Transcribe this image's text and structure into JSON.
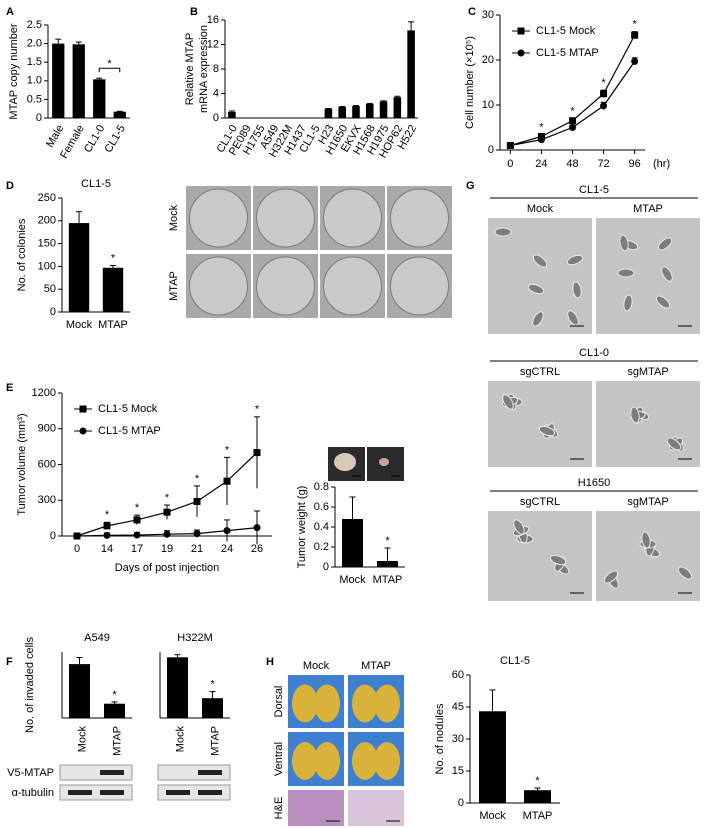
{
  "panels": [
    "A",
    "B",
    "C",
    "D",
    "E",
    "F",
    "G",
    "H"
  ],
  "chart_data": [
    {
      "type": "bar",
      "y_label": "MTAP copy number",
      "categories": [
        "Male",
        "Female",
        "CL1-0",
        "CL1-5"
      ],
      "values": [
        2.0,
        1.98,
        1.04,
        0.17
      ],
      "errors": [
        0.12,
        0.06,
        0.03,
        0.01
      ],
      "color": "#000000",
      "ylim": [
        0,
        2.5
      ],
      "yticks": [
        0,
        0.5,
        {
          "value": 1,
          "label": "1.0"
        },
        1.5,
        {
          "value": 2,
          "label": "2.0"
        },
        2.5
      ],
      "annotations": [
        {
          "text": "*",
          "from": "CL1-0",
          "to": "CL1-5"
        }
      ]
    },
    {
      "type": "bar",
      "y_label": [
        "Relative MTAP",
        "mRNA expression"
      ],
      "categories": [
        "CL1-0",
        "PE089",
        "H1755",
        "A549",
        "H322M",
        "H1437",
        "CL1-5",
        "H23",
        "H1650",
        "EKVX",
        "H1568",
        "H1975",
        "HOP62",
        "H522"
      ],
      "values": [
        1.0,
        0,
        0,
        0,
        0,
        0,
        0,
        1.5,
        1.8,
        1.95,
        2.3,
        2.7,
        3.4,
        14.3
      ],
      "errors": [
        0.15,
        0,
        0,
        0,
        0,
        0,
        0,
        0.05,
        0.08,
        0.08,
        0.08,
        0.1,
        0.15,
        1.4
      ],
      "color": "#000000",
      "ylim": [
        0,
        16
      ],
      "yticks": [
        0,
        4,
        8,
        12,
        16
      ]
    },
    {
      "type": "line",
      "y_label": "Cell number (×10⁵)",
      "x_label": "(hr)",
      "x": [
        0,
        24,
        48,
        72,
        96
      ],
      "xlim": [
        -8,
        104
      ],
      "xticks": [
        0,
        24,
        48,
        72,
        96
      ],
      "ylim": [
        0,
        30
      ],
      "yticks": [
        0,
        10,
        20,
        30
      ],
      "legend": "top-left",
      "series": [
        {
          "name": "CL1-5 Mock",
          "color": "#000000",
          "marker": "square",
          "values": [
            1,
            3,
            6.5,
            12.5,
            25.5
          ],
          "errors": [
            0.2,
            0.4,
            0.5,
            0.8,
            0.8
          ]
        },
        {
          "name": "CL1-5 MTAP",
          "color": "#000000",
          "marker": "circle",
          "values": [
            1,
            2.3,
            5,
            9.8,
            19.7
          ],
          "errors": [
            0.2,
            0.3,
            0.4,
            0.8,
            0.8
          ]
        }
      ],
      "annotations": [
        {
          "text": "*",
          "at": 24
        },
        {
          "text": "*",
          "at": 48
        },
        {
          "text": "*",
          "at": 72
        },
        {
          "text": "*",
          "at": 96
        }
      ]
    },
    {
      "type": "bar",
      "title": "CL1-5",
      "y_label": "No. of colonies",
      "categories": [
        "Mock",
        "MTAP"
      ],
      "values": [
        195,
        97
      ],
      "errors": [
        25,
        5
      ],
      "color": "#000000",
      "ylim": [
        0,
        250
      ],
      "yticks": [
        0,
        50,
        100,
        150,
        200,
        250
      ],
      "annotations": [
        {
          "text": "*",
          "at": "MTAP"
        }
      ]
    },
    {
      "type": "line",
      "y_label": "Tumor volume (mm³)",
      "x_label": "Days of post injection",
      "categories": [
        "0",
        "14",
        "17",
        "19",
        "21",
        "24",
        "26"
      ],
      "ylim": [
        0,
        1200
      ],
      "yticks": [
        0,
        300,
        600,
        900,
        1200
      ],
      "legend": "top-left",
      "series": [
        {
          "name": "CL1-5 Mock",
          "color": "#000000",
          "marker": "square",
          "values": [
            0,
            85,
            135,
            200,
            290,
            460,
            700
          ],
          "errors": [
            0,
            30,
            40,
            60,
            130,
            200,
            300
          ]
        },
        {
          "name": "CL1-5 MTAP",
          "color": "#000000",
          "marker": "circle",
          "values": [
            0,
            5,
            8,
            15,
            20,
            45,
            70
          ],
          "errors": [
            0,
            20,
            20,
            30,
            30,
            90,
            140
          ]
        }
      ],
      "annotations": [
        {
          "text": "*",
          "at": "14"
        },
        {
          "text": "*",
          "at": "17"
        },
        {
          "text": "*",
          "at": "19"
        },
        {
          "text": "*",
          "at": "21"
        },
        {
          "text": "*",
          "at": "24"
        },
        {
          "text": "*",
          "at": "26"
        }
      ]
    },
    {
      "type": "bar",
      "y_label": "Tumor weight (g)",
      "categories": [
        "Mock",
        "MTAP"
      ],
      "values": [
        0.48,
        0.06
      ],
      "errors": [
        0.22,
        0.13
      ],
      "color": "#000000",
      "ylim": [
        0,
        0.8
      ],
      "yticks": [
        0,
        0.2,
        0.4,
        0.6,
        0.8
      ],
      "annotations": [
        {
          "text": "*",
          "at": "MTAP"
        }
      ]
    },
    {
      "type": "bar",
      "title": "A549",
      "y_label": "No. of invaded cells",
      "categories": [
        "Mock",
        "MTAP"
      ],
      "values": [
        245,
        65
      ],
      "errors": [
        30,
        8
      ],
      "color": "#000000",
      "ylim": [
        0,
        300
      ],
      "annotations": [
        {
          "text": "*",
          "at": "MTAP"
        }
      ]
    },
    {
      "type": "bar",
      "title": "H322M",
      "categories": [
        "Mock",
        "MTAP"
      ],
      "values": [
        460,
        150
      ],
      "errors": [
        20,
        50
      ],
      "color": "#000000",
      "ylim": [
        0,
        500
      ],
      "annotations": [
        {
          "text": "*",
          "at": "MTAP"
        }
      ]
    },
    {
      "type": "bar",
      "title": "CL1-5",
      "y_label": "No. of nodules",
      "categories": [
        "Mock",
        "MTAP"
      ],
      "values": [
        43,
        6
      ],
      "errors": [
        10,
        1
      ],
      "color": "#000000",
      "ylim": [
        0,
        60
      ],
      "yticks": [
        0,
        15,
        30,
        45,
        60
      ],
      "annotations": [
        {
          "text": "*",
          "at": "MTAP"
        }
      ]
    }
  ],
  "colony_plates": {
    "rows": [
      "Mock",
      "MTAP"
    ]
  },
  "western_blots": {
    "rows": [
      "V5-MTAP",
      "α-tubulin"
    ]
  },
  "cell_images": [
    {
      "title": "CL1-5",
      "columns": [
        "Mock",
        "MTAP"
      ]
    },
    {
      "title": "CL1-0",
      "columns": [
        "sgCTRL",
        "sgMTAP"
      ]
    },
    {
      "title": "H1650",
      "columns": [
        "sgCTRL",
        "sgMTAP"
      ]
    }
  ],
  "lung_images": {
    "columns": [
      "Mock",
      "MTAP"
    ],
    "rows": [
      "Dorsal",
      "Ventral",
      "H&E"
    ]
  }
}
